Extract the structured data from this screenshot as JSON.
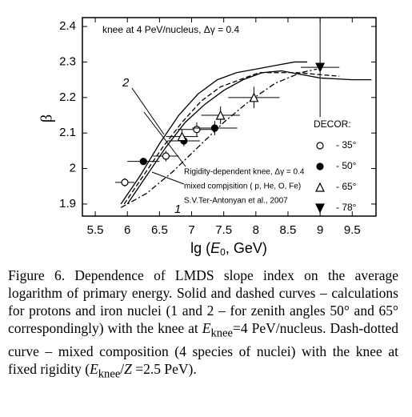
{
  "chart_data": {
    "type": "scatter",
    "x_label": [
      "lg (",
      "E",
      "0",
      ", GeV)"
    ],
    "y_label": "β",
    "xlim": [
      5.3,
      9.87
    ],
    "ylim": [
      1.866,
      2.425
    ],
    "xticks": [
      5.5,
      6.0,
      6.5,
      7.0,
      7.5,
      8.0,
      8.5,
      9.0,
      9.5
    ],
    "yticks": [
      1.9,
      2.0,
      2.1,
      2.2,
      2.3,
      2.4
    ],
    "legend_title": "DECOR:",
    "annotations": [
      "knee at 4 PeV/nucleus, Δγ = 0.4",
      "Rigidity-dependent knee, Δγ = 0.4",
      "mixed compjsition ( p, He, O, Fe)",
      "S.V.Ter-Antonyan et al., 2007",
      "2",
      "1"
    ],
    "series": [
      {
        "name": "- 35°",
        "marker": "circle-open",
        "x": [
          5.96,
          6.6,
          7.08
        ],
        "values": [
          1.961,
          2.035,
          2.11
        ],
        "xerr": [
          0.15,
          0.2,
          0.3
        ],
        "yerr": [
          0.012,
          0.015,
          0.02
        ]
      },
      {
        "name": "- 50°",
        "marker": "circle-filled",
        "x": [
          6.25,
          6.88,
          7.36
        ],
        "values": [
          2.02,
          2.078,
          2.114
        ],
        "xerr": [
          0.25,
          0.25,
          0.35
        ],
        "yerr": [
          0.01,
          0.015,
          0.02
        ]
      },
      {
        "name": "- 65°",
        "marker": "triangle-open",
        "x": [
          6.85,
          7.45,
          7.97
        ],
        "values": [
          2.09,
          2.15,
          2.2
        ],
        "xerr": [
          0.25,
          0.3,
          0.4
        ],
        "yerr": [
          0.02,
          0.025,
          0.03
        ]
      },
      {
        "name": "- 78°",
        "marker": "triangle-down-filled",
        "x": [
          9.0
        ],
        "values": [
          2.285
        ],
        "xerr": [
          0.3
        ],
        "yerr": [
          0.14
        ]
      }
    ],
    "curves": [
      {
        "style": "solid",
        "x": [
          5.9,
          6.2,
          6.5,
          6.8,
          7.1,
          7.4,
          7.7,
          8.0,
          8.3,
          8.6,
          8.8
        ],
        "values": [
          1.9,
          1.98,
          2.07,
          2.15,
          2.21,
          2.25,
          2.27,
          2.28,
          2.29,
          2.3,
          2.3
        ]
      },
      {
        "style": "solid",
        "x": [
          6.0,
          6.3,
          6.6,
          6.9,
          7.2,
          7.5,
          7.8,
          8.1,
          8.4,
          8.7,
          9.0,
          9.5,
          9.8
        ],
        "values": [
          1.9,
          1.98,
          2.06,
          2.13,
          2.18,
          2.22,
          2.25,
          2.27,
          2.275,
          2.265,
          2.255,
          2.25,
          2.25
        ]
      },
      {
        "style": "dashed",
        "x": [
          5.95,
          6.25,
          6.55,
          6.85,
          7.15,
          7.45,
          7.75,
          8.05,
          8.35,
          8.65,
          8.95,
          9.3
        ],
        "values": [
          1.9,
          1.98,
          2.06,
          2.13,
          2.19,
          2.23,
          2.25,
          2.27,
          2.27,
          2.27,
          2.265,
          2.26
        ]
      },
      {
        "style": "dashdot",
        "x": [
          5.9,
          6.3,
          6.7,
          7.1,
          7.5,
          7.9,
          8.3,
          8.7,
          8.95
        ],
        "values": [
          1.89,
          1.93,
          1.99,
          2.06,
          2.13,
          2.19,
          2.24,
          2.27,
          2.28
        ]
      }
    ]
  },
  "caption": [
    "Figure 6. Dependence of LMDS slope index on the average logarithm of primary energy. Solid and dashed curves – calculations for protons and iron nuclei (1 and 2 – for zenith angles 50° and 65° correspondingly) with the knee at ",
    "E",
    "knee",
    "=4 PeV/nucleus. Dash-dotted curve – mixed composition (4 species of nuclei) with the knee at fixed rigidity (",
    "E",
    "knee",
    "/",
    "Z",
    " =2.5 PeV)."
  ]
}
